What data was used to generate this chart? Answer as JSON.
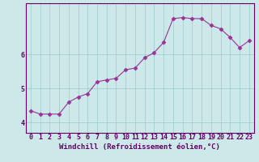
{
  "x": [
    0,
    1,
    2,
    3,
    4,
    5,
    6,
    7,
    8,
    9,
    10,
    11,
    12,
    13,
    14,
    15,
    16,
    17,
    18,
    19,
    20,
    21,
    22,
    23
  ],
  "y": [
    4.35,
    4.25,
    4.25,
    4.25,
    4.6,
    4.75,
    4.85,
    5.2,
    5.25,
    5.3,
    5.55,
    5.6,
    5.9,
    6.05,
    6.35,
    7.05,
    7.08,
    7.05,
    7.05,
    6.85,
    6.75,
    6.5,
    6.2,
    6.4
  ],
  "line_color": "#993399",
  "marker": "D",
  "marker_size": 2.5,
  "bg_color": "#cce8e8",
  "grid_color": "#99cccc",
  "xlabel": "Windchill (Refroidissement éolien,°C)",
  "xlim": [
    -0.5,
    23.5
  ],
  "ylim": [
    3.7,
    7.5
  ],
  "yticks": [
    4,
    5,
    6
  ],
  "xticks": [
    0,
    1,
    2,
    3,
    4,
    5,
    6,
    7,
    8,
    9,
    10,
    11,
    12,
    13,
    14,
    15,
    16,
    17,
    18,
    19,
    20,
    21,
    22,
    23
  ],
  "xlabel_fontsize": 6.5,
  "tick_fontsize": 6,
  "line_color_hex": "#993399",
  "spine_color": "#660066",
  "label_color": "#660066"
}
